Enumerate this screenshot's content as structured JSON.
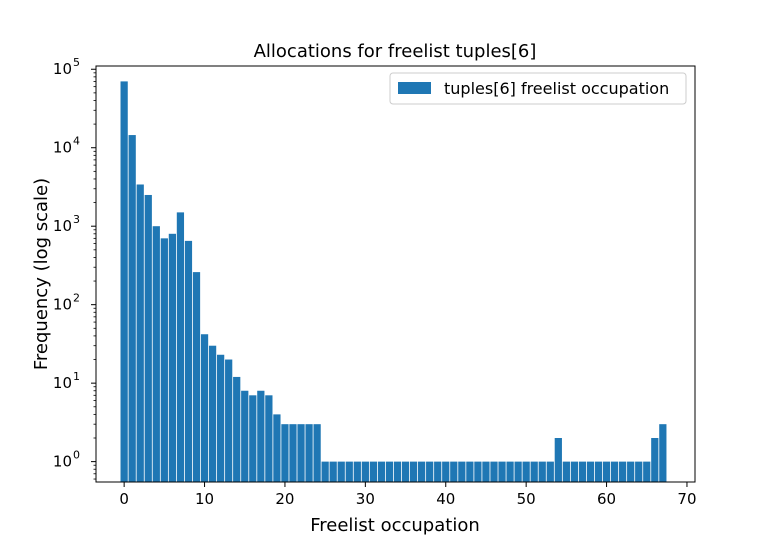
{
  "chart_data": {
    "type": "bar",
    "title": "Allocations for freelist tuples[6]",
    "xlabel": "Freelist occupation",
    "ylabel": "Frequency (log scale)",
    "yscale": "log",
    "xlim": [
      -3.5,
      71
    ],
    "ylim": [
      0.55,
      110000
    ],
    "xticks": [
      0,
      10,
      20,
      30,
      40,
      50,
      60,
      70
    ],
    "yticks": [
      {
        "value": 1,
        "base": "10",
        "exp": "0"
      },
      {
        "value": 10,
        "base": "10",
        "exp": "1"
      },
      {
        "value": 100,
        "base": "10",
        "exp": "2"
      },
      {
        "value": 1000,
        "base": "10",
        "exp": "3"
      },
      {
        "value": 10000,
        "base": "10",
        "exp": "4"
      },
      {
        "value": 100000,
        "base": "10",
        "exp": "5"
      }
    ],
    "legend_position": "top-right",
    "bar_color": "#1f77b4",
    "series": [
      {
        "name": "tuples[6] freelist occupation",
        "x": [
          0,
          1,
          2,
          3,
          4,
          5,
          6,
          7,
          8,
          9,
          10,
          11,
          12,
          13,
          14,
          15,
          16,
          17,
          18,
          19,
          20,
          21,
          22,
          23,
          24,
          25,
          26,
          27,
          28,
          29,
          30,
          31,
          32,
          33,
          34,
          35,
          36,
          37,
          38,
          39,
          40,
          41,
          42,
          43,
          44,
          45,
          46,
          47,
          48,
          49,
          50,
          51,
          52,
          53,
          54,
          55,
          56,
          57,
          58,
          59,
          60,
          61,
          62,
          63,
          64,
          65,
          66,
          67
        ],
        "values": [
          70000,
          14500,
          3400,
          2500,
          1000,
          700,
          800,
          1500,
          650,
          260,
          42,
          30,
          23,
          20,
          12,
          8,
          7,
          8,
          7,
          4,
          3,
          3,
          3,
          3,
          3,
          1,
          1,
          1,
          1,
          1,
          1,
          1,
          1,
          1,
          1,
          1,
          1,
          1,
          1,
          1,
          1,
          1,
          1,
          1,
          1,
          1,
          1,
          1,
          1,
          1,
          1,
          1,
          1,
          1,
          2,
          1,
          1,
          1,
          1,
          1,
          1,
          1,
          1,
          1,
          1,
          1,
          2,
          3
        ]
      }
    ]
  }
}
